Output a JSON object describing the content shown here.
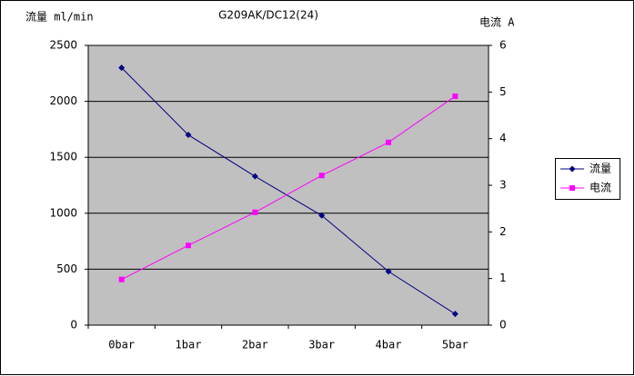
{
  "chart_data": {
    "type": "line",
    "title": "G209AK/DC12(24)",
    "y_label": "流量 ml/min",
    "y2_label": "电流 A",
    "categories": [
      "0bar",
      "1bar",
      "2bar",
      "3bar",
      "4bar",
      "5bar"
    ],
    "series": [
      {
        "name": "流量",
        "color": "#000080",
        "marker": "diamond",
        "values": [
          2300,
          1700,
          1330,
          980,
          480,
          100
        ]
      },
      {
        "name": "电流",
        "color": "#ff00ff",
        "marker": "square",
        "axis": "y2",
        "values": [
          0.98,
          1.71,
          2.42,
          3.21,
          3.92,
          4.91
        ]
      }
    ],
    "ylim": [
      0,
      2500
    ],
    "yticks": [
      0,
      500,
      1000,
      1500,
      2000,
      2500
    ],
    "y2lim": [
      0,
      6
    ],
    "y2ticks": [
      0,
      1,
      2,
      3,
      4,
      5,
      6
    ],
    "grid": true,
    "legend": "right",
    "plot_background": "#c0c0c0"
  }
}
